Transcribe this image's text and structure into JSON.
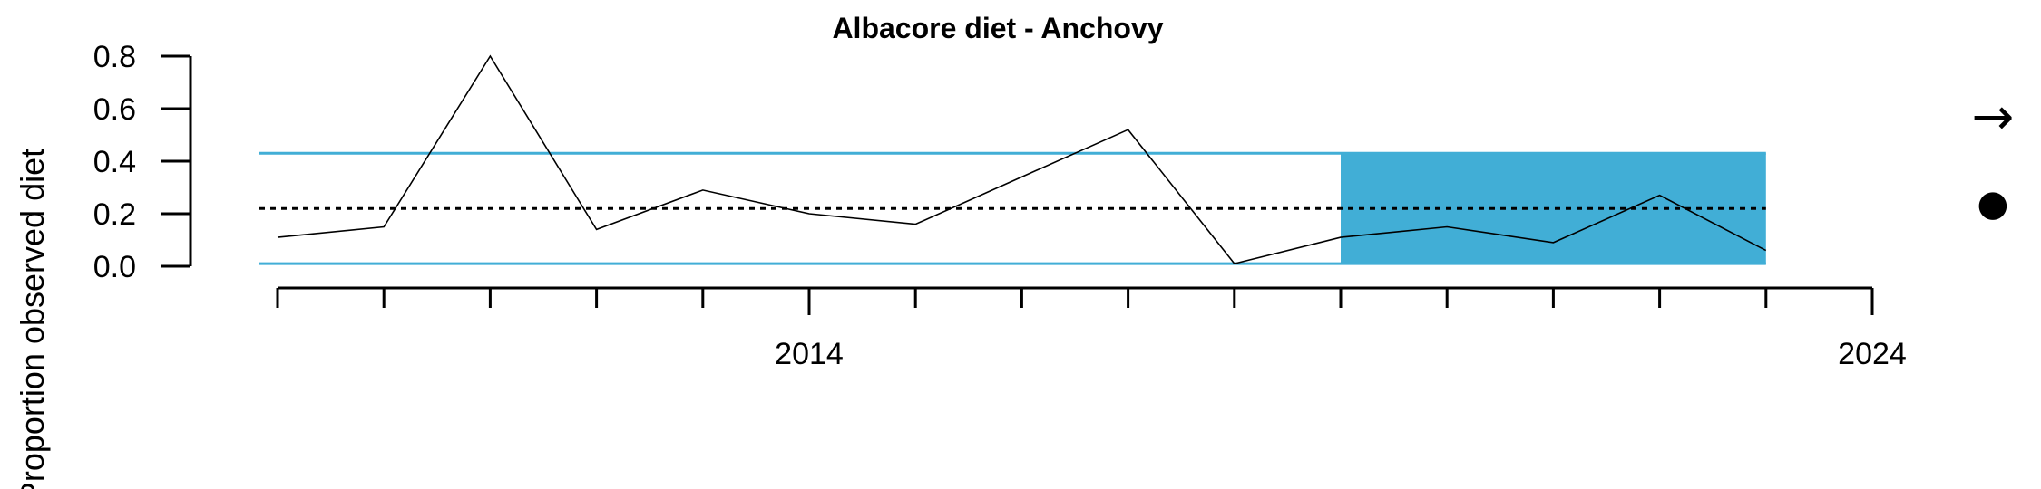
{
  "chart_data": {
    "type": "line",
    "title": "Albacore diet - Anchovy",
    "ylabel": "Proportion observed diet",
    "xlabel": "",
    "xlim": [
      2008.8,
      2024
    ],
    "ylim": [
      0,
      0.8
    ],
    "x_tick_labels": [
      "2014",
      "2024"
    ],
    "x_tick_label_values": [
      2014,
      2024
    ],
    "x_minor_ticks": [
      2009,
      2010,
      2011,
      2012,
      2013,
      2014,
      2015,
      2016,
      2017,
      2018,
      2019,
      2020,
      2021,
      2022,
      2023,
      2024
    ],
    "y_ticks": [
      "0.0",
      "0.2",
      "0.4",
      "0.6",
      "0.8"
    ],
    "y_tick_values": [
      0.0,
      0.2,
      0.4,
      0.6,
      0.8
    ],
    "series": [
      {
        "x": [
          2009,
          2010,
          2011,
          2012,
          2013,
          2014,
          2015,
          2016,
          2017,
          2018,
          2019,
          2020,
          2021,
          2022,
          2023
        ],
        "values": [
          0.11,
          0.15,
          0.8,
          0.14,
          0.29,
          0.2,
          0.16,
          0.34,
          0.52,
          0.01,
          0.11,
          0.15,
          0.09,
          0.27,
          0.06
        ]
      }
    ],
    "mean": 0.22,
    "upper_sd": 0.43,
    "lower_sd": 0.01,
    "highlight_x_range": [
      2019,
      2023
    ],
    "highlight_color": "#41aed6",
    "sd_line_color": "#41aed6",
    "line_color": "#000000",
    "trend_symbol": "→",
    "mean_symbol": "●"
  }
}
